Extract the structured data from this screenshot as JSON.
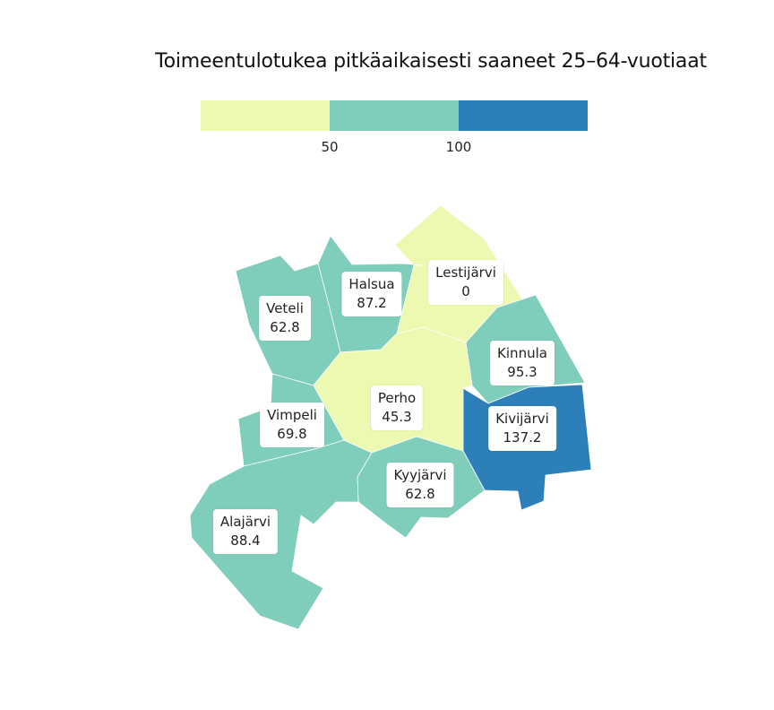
{
  "title": "Toimeentulotukea pitkäaikaisesti saaneet 25–64-vuotiaat",
  "legend": {
    "classes": [
      {
        "color": "#edf8b1",
        "range": "< 50"
      },
      {
        "color": "#7fcdbb",
        "range": "50–100"
      },
      {
        "color": "#2c7fb8",
        "range": "> 100"
      }
    ],
    "ticks": [
      "50",
      "100"
    ]
  },
  "chart_data": {
    "type": "choropleth",
    "title": "Toimeentulotukea pitkäaikaisesti saaneet 25–64-vuotiaat",
    "breaks": [
      50,
      100
    ],
    "regions": [
      {
        "name": "Lestijärvi",
        "value": "0"
      },
      {
        "name": "Halsua",
        "value": "87.2"
      },
      {
        "name": "Veteli",
        "value": "62.8"
      },
      {
        "name": "Kinnula",
        "value": "95.3"
      },
      {
        "name": "Perho",
        "value": "45.3"
      },
      {
        "name": "Vimpeli",
        "value": "69.8"
      },
      {
        "name": "Kivijärvi",
        "value": "137.2"
      },
      {
        "name": "Kyyjärvi",
        "value": "62.8"
      },
      {
        "name": "Alajärvi",
        "value": "88.4"
      }
    ]
  }
}
